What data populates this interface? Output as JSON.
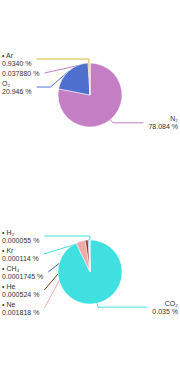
{
  "chart_data": [
    {
      "type": "pie",
      "categories": [
        "N₂",
        "O₂",
        "• Ar",
        null
      ],
      "values": [
        78.084,
        20.946,
        0.934,
        0.03788
      ],
      "value_labels": [
        "78.084 %",
        "20.946 %",
        "0.9340 %",
        "0.037880 %"
      ],
      "colors": [
        "#c47fc4",
        "#4f6fce",
        "#d4b830",
        "#c47fc4"
      ],
      "data_labels": true
    },
    {
      "type": "pie",
      "categories": [
        "CO₂",
        "• Ne",
        "• He",
        "• CH₄",
        "• Kr",
        "• H₂"
      ],
      "values": [
        0.035,
        0.001818,
        0.000524,
        0.0001745,
        0.000114,
        5.5e-05
      ],
      "value_labels": [
        "0.035 %",
        "0.001818 %",
        "0.000524 %",
        "0.0001745 %",
        "0.000114 %",
        "0.000055 %"
      ],
      "colors": [
        "#40e0e0",
        "#f0aaaa",
        "#8b3a10",
        "#3a5fcc",
        "#40e0e0",
        "#40e0e0"
      ],
      "data_labels": true
    }
  ]
}
